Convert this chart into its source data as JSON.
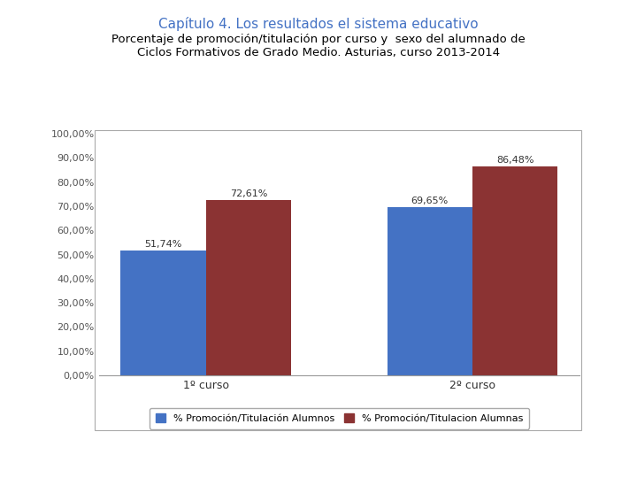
{
  "title_line1": "Capítulo 4. Los resultados el sistema educativo",
  "title_line2": "Porcentaje de promoción/titulación por curso y  sexo del alumnado de\nCiclos Formativos de Grado Medio. Asturias, curso 2013-2014",
  "categories": [
    "1º curso",
    "2º curso"
  ],
  "alumnos_values": [
    51.74,
    69.65
  ],
  "alumnas_values": [
    72.61,
    86.48
  ],
  "alumnos_color": "#4472C4",
  "alumnas_color": "#8B3333",
  "legend_alumnos": "% Promoción/Titulación Alumnos",
  "legend_alumnas": "% Promoción/Titulacion Alumnas",
  "ylim": [
    0,
    100
  ],
  "yticks": [
    0,
    10,
    20,
    30,
    40,
    50,
    60,
    70,
    80,
    90,
    100
  ],
  "ytick_labels": [
    "0,00%",
    "10,00%",
    "20,00%",
    "30,00%",
    "40,00%",
    "50,00%",
    "60,00%",
    "70,00%",
    "80,00%",
    "90,00%",
    "100,00%"
  ],
  "bar_width": 0.32,
  "title1_color": "#4472C4",
  "title2_color": "#000000",
  "background_color": "#ffffff",
  "title1_fontsize": 11,
  "title2_fontsize": 9.5,
  "tick_fontsize": 8,
  "bar_label_fontsize": 8,
  "legend_fontsize": 8,
  "xtick_fontsize": 9
}
